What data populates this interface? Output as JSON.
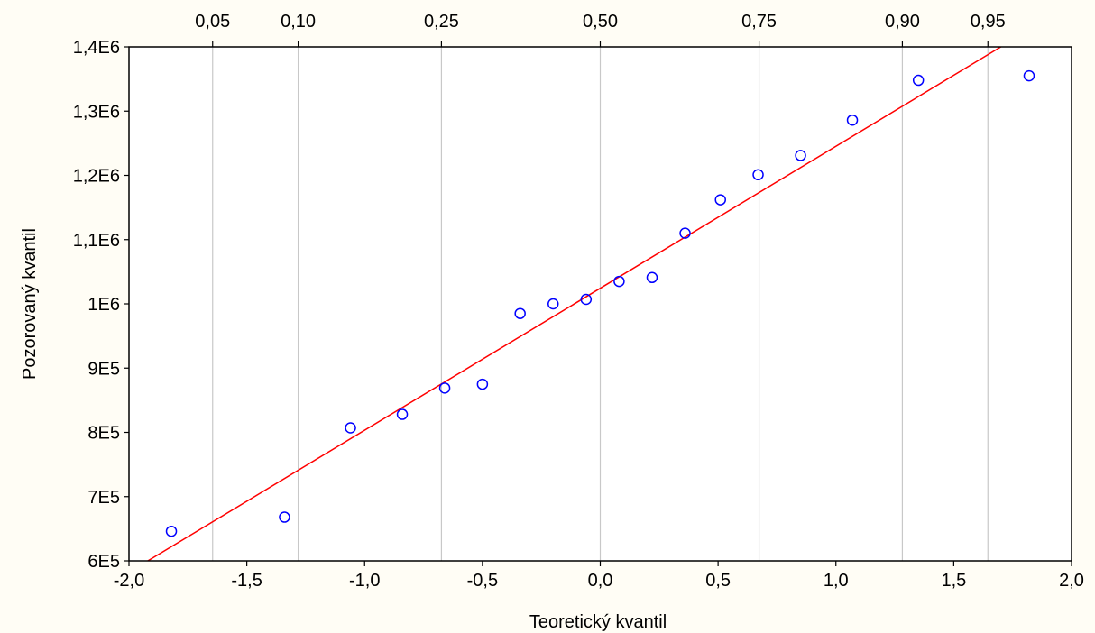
{
  "chart_data": {
    "type": "scatter",
    "title": "",
    "xlabel": "Teoretický kvantil",
    "ylabel": "Pozorovaný kvantil",
    "xlim": [
      -2.0,
      2.0
    ],
    "ylim": [
      600000,
      1400000
    ],
    "x_ticks": [
      {
        "value": -2.0,
        "label": "-2,0"
      },
      {
        "value": -1.5,
        "label": "-1,5"
      },
      {
        "value": -1.0,
        "label": "-1,0"
      },
      {
        "value": -0.5,
        "label": "-0,5"
      },
      {
        "value": 0.0,
        "label": "0,0"
      },
      {
        "value": 0.5,
        "label": "0,5"
      },
      {
        "value": 1.0,
        "label": "1,0"
      },
      {
        "value": 1.5,
        "label": "1,5"
      },
      {
        "value": 2.0,
        "label": "2,0"
      }
    ],
    "y_ticks": [
      {
        "value": 600000,
        "label": "6E5"
      },
      {
        "value": 700000,
        "label": "7E5"
      },
      {
        "value": 800000,
        "label": "8E5"
      },
      {
        "value": 900000,
        "label": "9E5"
      },
      {
        "value": 1000000,
        "label": "1E6"
      },
      {
        "value": 1100000,
        "label": "1,1E6"
      },
      {
        "value": 1200000,
        "label": "1,2E6"
      },
      {
        "value": 1300000,
        "label": "1,3E6"
      },
      {
        "value": 1400000,
        "label": "1,4E6"
      }
    ],
    "top_ticks": [
      {
        "value": -1.645,
        "label": "0,05"
      },
      {
        "value": -1.282,
        "label": "0,10"
      },
      {
        "value": -0.674,
        "label": "0,25"
      },
      {
        "value": 0.0,
        "label": "0,50"
      },
      {
        "value": 0.674,
        "label": "0,75"
      },
      {
        "value": 1.282,
        "label": "0,90"
      },
      {
        "value": 1.645,
        "label": "0,95"
      }
    ],
    "grid": {
      "vertical_at_top_ticks": true,
      "horizontal": false
    },
    "series": [
      {
        "type": "scatter",
        "color": "#0000FF",
        "points": [
          {
            "x": -1.82,
            "y": 646000
          },
          {
            "x": -1.34,
            "y": 668000
          },
          {
            "x": -1.06,
            "y": 807000
          },
          {
            "x": -0.84,
            "y": 828000
          },
          {
            "x": -0.66,
            "y": 869000
          },
          {
            "x": -0.5,
            "y": 875000
          },
          {
            "x": -0.34,
            "y": 985000
          },
          {
            "x": -0.2,
            "y": 1000000
          },
          {
            "x": -0.06,
            "y": 1007000
          },
          {
            "x": 0.08,
            "y": 1035000
          },
          {
            "x": 0.22,
            "y": 1041000
          },
          {
            "x": 0.36,
            "y": 1110000
          },
          {
            "x": 0.51,
            "y": 1162000
          },
          {
            "x": 0.67,
            "y": 1201000
          },
          {
            "x": 0.85,
            "y": 1231000
          },
          {
            "x": 1.07,
            "y": 1286000
          },
          {
            "x": 1.35,
            "y": 1348000
          },
          {
            "x": 1.82,
            "y": 1355000
          }
        ]
      },
      {
        "type": "line",
        "color": "#FF0000",
        "points": [
          {
            "x": -1.92,
            "y": 600000
          },
          {
            "x": 1.7,
            "y": 1400000
          }
        ]
      }
    ],
    "colors": {
      "background": "#FFFDF5",
      "plot_background": "#FFFFFF",
      "grid": "#C8C8C8",
      "axis": "#000000"
    }
  }
}
